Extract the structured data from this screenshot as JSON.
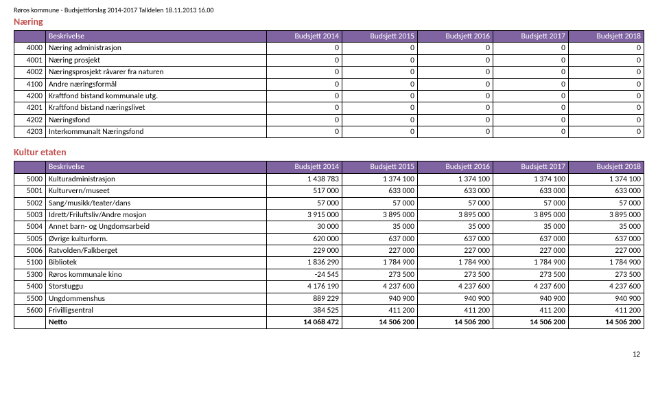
{
  "pageMeta": {
    "topLine": "Røros kommune - Budsjettforslag 2014-2017 Talldelen 18.11.2013 16.00",
    "pageNumber": "12"
  },
  "headerRow": {
    "desc": "Beskrivelse",
    "cols": [
      "Budsjett 2014",
      "Budsjett 2015",
      "Budsjett 2016",
      "Budsjett 2017",
      "Budsjett 2018"
    ]
  },
  "colors": {
    "headerBg": "#8064a2",
    "headerFg": "#ffffff",
    "sectionFg": "#c0504d",
    "border": "#000000"
  },
  "section1": {
    "title": "Næring",
    "rows": [
      {
        "code": "4000",
        "desc": "Næring administrasjon",
        "v": [
          "0",
          "0",
          "0",
          "0",
          "0"
        ]
      },
      {
        "code": "4001",
        "desc": "Næring prosjekt",
        "v": [
          "0",
          "0",
          "0",
          "0",
          "0"
        ]
      },
      {
        "code": "4002",
        "desc": "Næringsprosjekt råvarer fra naturen",
        "v": [
          "0",
          "0",
          "0",
          "0",
          "0"
        ]
      },
      {
        "code": "4100",
        "desc": "Andre næringsformål",
        "v": [
          "0",
          "0",
          "0",
          "0",
          "0"
        ]
      },
      {
        "code": "4200",
        "desc": "Kraftfond bistand kommunale utg.",
        "v": [
          "0",
          "0",
          "0",
          "0",
          "0"
        ]
      },
      {
        "code": "4201",
        "desc": "Kraftfond bistand næringslivet",
        "v": [
          "0",
          "0",
          "0",
          "0",
          "0"
        ]
      },
      {
        "code": "4202",
        "desc": "Næringsfond",
        "v": [
          "0",
          "0",
          "0",
          "0",
          "0"
        ]
      },
      {
        "code": "4203",
        "desc": "Interkommunalt Næringsfond",
        "v": [
          "0",
          "0",
          "0",
          "0",
          "0"
        ]
      }
    ]
  },
  "section2": {
    "title": "Kultur etaten",
    "rows": [
      {
        "code": "5000",
        "desc": "Kulturadministrasjon",
        "v": [
          "1 438 783",
          "1 374 100",
          "1 374 100",
          "1 374 100",
          "1 374 100"
        ]
      },
      {
        "code": "5001",
        "desc": "Kulturvern/museet",
        "v": [
          "517 000",
          "633 000",
          "633 000",
          "633 000",
          "633 000"
        ]
      },
      {
        "code": "5002",
        "desc": "Sang/musikk/teater/dans",
        "v": [
          "57 000",
          "57 000",
          "57 000",
          "57 000",
          "57 000"
        ]
      },
      {
        "code": "5003",
        "desc": "Idrett/Friluftsliv/Andre mosjon",
        "v": [
          "3 915 000",
          "3 895 000",
          "3 895 000",
          "3 895 000",
          "3 895 000"
        ]
      },
      {
        "code": "5004",
        "desc": "Annet barn- og Ungdomsarbeid",
        "v": [
          "30 000",
          "35 000",
          "35 000",
          "35 000",
          "35 000"
        ]
      },
      {
        "code": "5005",
        "desc": "Øvrige kulturform.",
        "v": [
          "620 000",
          "637 000",
          "637 000",
          "637 000",
          "637 000"
        ]
      },
      {
        "code": "5006",
        "desc": "Ratvolden/Falkberget",
        "v": [
          "229 000",
          "227 000",
          "227 000",
          "227 000",
          "227 000"
        ]
      },
      {
        "code": "5100",
        "desc": "Bibliotek",
        "v": [
          "1 836 290",
          "1 784 900",
          "1 784 900",
          "1 784 900",
          "1 784 900"
        ]
      },
      {
        "code": "5300",
        "desc": "Røros kommunale kino",
        "v": [
          "-24 545",
          "273 500",
          "273 500",
          "273 500",
          "273 500"
        ]
      },
      {
        "code": "5400",
        "desc": "Storstuggu",
        "v": [
          "4 176 190",
          "4 237 600",
          "4 237 600",
          "4 237 600",
          "4 237 600"
        ]
      },
      {
        "code": "5500",
        "desc": "Ungdommenshus",
        "v": [
          "889 229",
          "940 900",
          "940 900",
          "940 900",
          "940 900"
        ]
      },
      {
        "code": "5600",
        "desc": "Frivilligsentral",
        "v": [
          "384 525",
          "411 200",
          "411 200",
          "411 200",
          "411 200"
        ]
      }
    ],
    "netto": {
      "label": "Netto",
      "v": [
        "14 068 472",
        "14 506 200",
        "14 506 200",
        "14 506 200",
        "14 506 200"
      ]
    }
  }
}
